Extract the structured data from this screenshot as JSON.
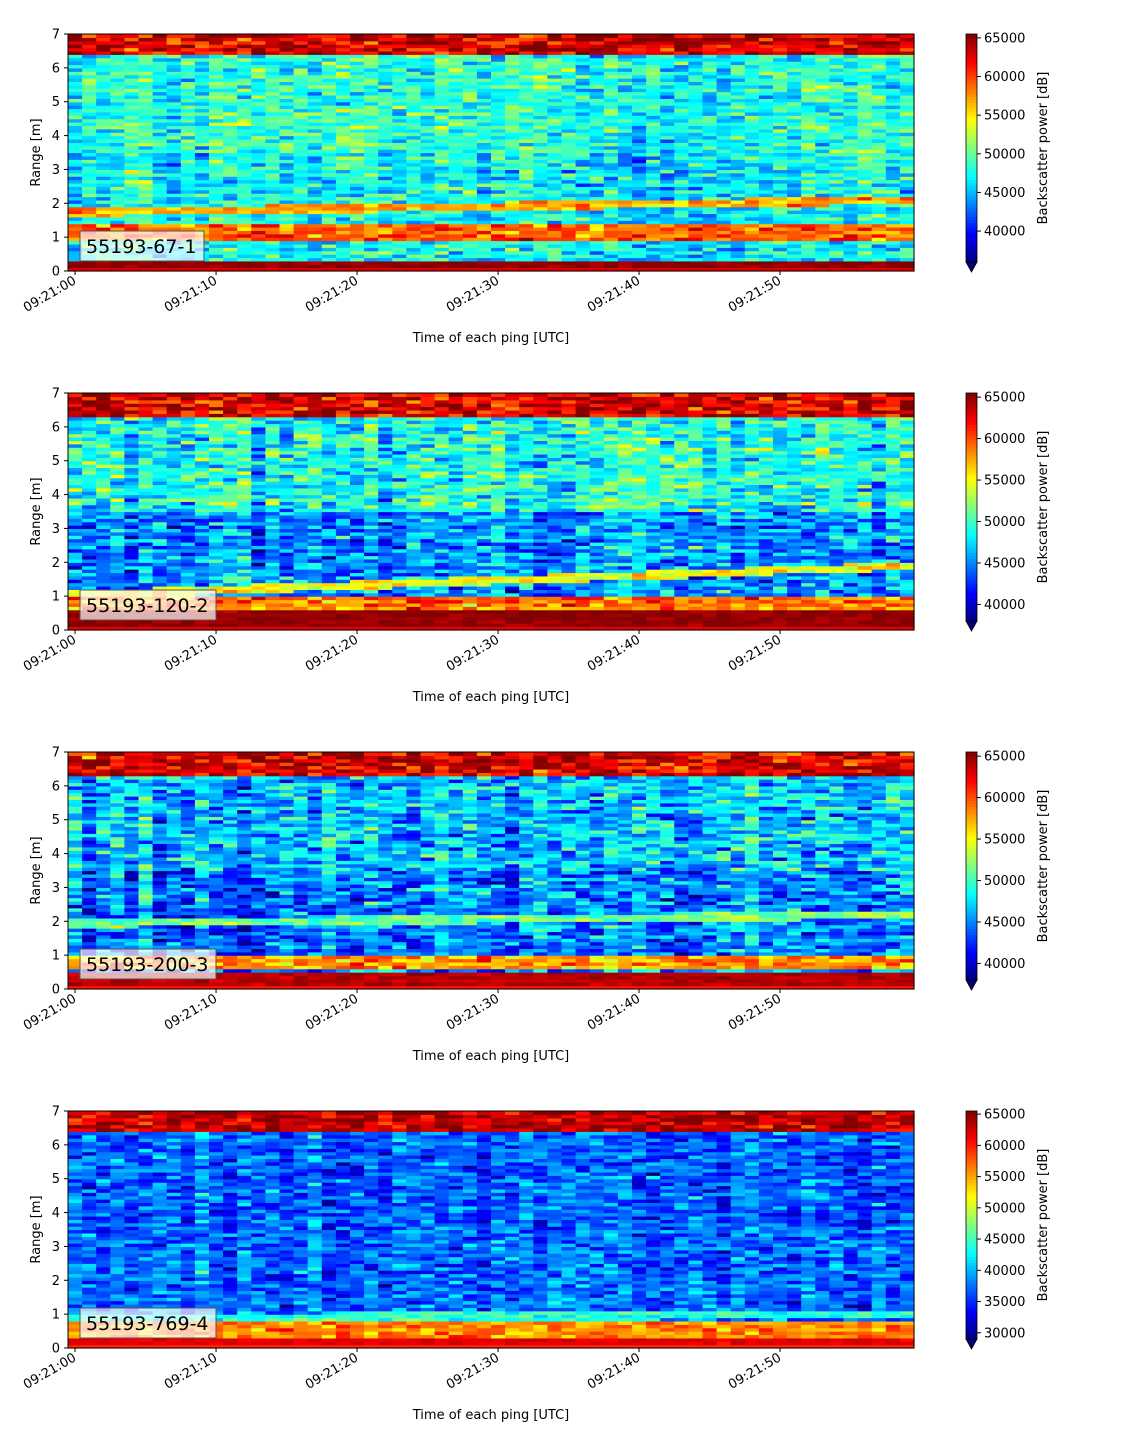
{
  "chart_data": [
    {
      "type": "heatmap",
      "label": "55193-67-1",
      "xlabel": "Time of each ping [UTC]",
      "ylabel": "Range [m]",
      "colorbar_label": "Backscatter power [dB]",
      "x_ticks": [
        "09:21:00",
        "09:21:10",
        "09:21:20",
        "09:21:30",
        "09:21:40",
        "09:21:50"
      ],
      "y_ticks": [
        0,
        1,
        2,
        3,
        4,
        5,
        6,
        7
      ],
      "ylim": [
        0,
        7
      ],
      "xlim_seconds": [
        -0.5,
        59.5
      ],
      "clim": [
        36000,
        65500
      ],
      "colorbar_ticks": [
        40000,
        45000,
        50000,
        55000,
        60000,
        65000
      ],
      "extend": "min",
      "colormap": "jet",
      "features": {
        "bottom_level": 65000,
        "bottom_top": 0.3,
        "surface_bottom": 6.4,
        "line_start": 1.75,
        "line_end": 2.1,
        "line_level": 57000,
        "bright_band": 1.15,
        "mid_level": 47000,
        "upper_level": 48000,
        "noise": 3200
      }
    },
    {
      "type": "heatmap",
      "label": "55193-120-2",
      "xlabel": "Time of each ping [UTC]",
      "ylabel": "Range [m]",
      "colorbar_label": "Backscatter power [dB]",
      "x_ticks": [
        "09:21:00",
        "09:21:10",
        "09:21:20",
        "09:21:30",
        "09:21:40",
        "09:21:50"
      ],
      "y_ticks": [
        0,
        1,
        2,
        3,
        4,
        5,
        6,
        7
      ],
      "ylim": [
        0,
        7
      ],
      "xlim_seconds": [
        -0.5,
        59.5
      ],
      "clim": [
        38000,
        65500
      ],
      "colorbar_ticks": [
        40000,
        45000,
        50000,
        55000,
        60000,
        65000
      ],
      "extend": "min",
      "colormap": "jet",
      "features": {
        "bottom_level": 65000,
        "bottom_top": 0.6,
        "surface_bottom": 6.3,
        "line_start": 1.05,
        "line_end": 1.9,
        "line_level": 55000,
        "bright_band": 0.75,
        "mid_level": 45500,
        "upper_level": 49000,
        "noise": 3500
      }
    },
    {
      "type": "heatmap",
      "label": "55193-200-3",
      "xlabel": "Time of each ping [UTC]",
      "ylabel": "Range [m]",
      "colorbar_label": "Backscatter power [dB]",
      "x_ticks": [
        "09:21:00",
        "09:21:10",
        "09:21:20",
        "09:21:30",
        "09:21:40",
        "09:21:50"
      ],
      "y_ticks": [
        0,
        1,
        2,
        3,
        4,
        5,
        6,
        7
      ],
      "ylim": [
        0,
        7
      ],
      "xlim_seconds": [
        -0.5,
        59.5
      ],
      "clim": [
        38000,
        65500
      ],
      "colorbar_ticks": [
        40000,
        45000,
        50000,
        55000,
        60000,
        65000
      ],
      "extend": "min",
      "colormap": "jet",
      "features": {
        "bottom_level": 64000,
        "bottom_top": 0.55,
        "surface_bottom": 6.25,
        "line_start": 1.95,
        "line_end": 2.2,
        "line_level": 51000,
        "bright_band": 0.8,
        "mid_level": 44500,
        "upper_level": 46500,
        "noise": 3600
      }
    },
    {
      "type": "heatmap",
      "label": "55193-769-4",
      "xlabel": "Time of each ping [UTC]",
      "ylabel": "Range [m]",
      "colorbar_label": "Backscatter power [dB]",
      "x_ticks": [
        "09:21:00",
        "09:21:10",
        "09:21:20",
        "09:21:30",
        "09:21:40",
        "09:21:50"
      ],
      "y_ticks": [
        0,
        1,
        2,
        3,
        4,
        5,
        6,
        7
      ],
      "ylim": [
        0,
        7
      ],
      "xlim_seconds": [
        -0.5,
        59.5
      ],
      "clim": [
        29000,
        65500
      ],
      "colorbar_ticks": [
        30000,
        35000,
        40000,
        45000,
        50000,
        55000,
        60000,
        65000
      ],
      "extend": "min",
      "colormap": "jet",
      "features": {
        "bottom_level": 62000,
        "bottom_top": 0.3,
        "surface_bottom": 6.35,
        "line_start": 0.9,
        "line_end": 1.0,
        "line_level": 44000,
        "bright_band": 0.55,
        "mid_level": 37500,
        "upper_level": 37000,
        "noise": 3500
      }
    }
  ]
}
